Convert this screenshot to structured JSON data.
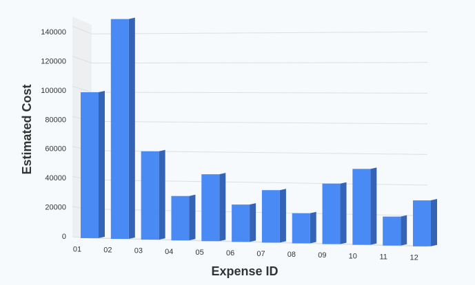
{
  "chart_data": {
    "type": "bar",
    "x_label": "Expense ID",
    "y_label": "Estimated Cost",
    "categories": [
      "01",
      "02",
      "03",
      "04",
      "05",
      "06",
      "07",
      "08",
      "09",
      "10",
      "11",
      "12"
    ],
    "values": [
      100000,
      150000,
      60000,
      30000,
      45000,
      25000,
      35000,
      20000,
      40000,
      50000,
      19000,
      30000
    ],
    "color": "#4a8af4",
    "ylim": [
      0,
      150000
    ],
    "yticks": [
      0,
      20000,
      40000,
      60000,
      80000,
      100000,
      120000,
      140000
    ],
    "grid": true
  }
}
